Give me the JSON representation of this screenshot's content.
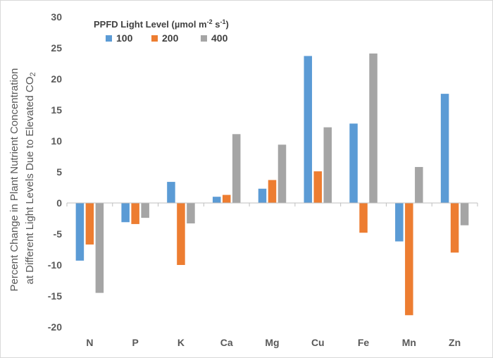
{
  "chart_data": {
    "type": "bar",
    "categories": [
      "N",
      "P",
      "K",
      "Ca",
      "Mg",
      "Cu",
      "Fe",
      "Mn",
      "Zn"
    ],
    "series": [
      {
        "name": "100",
        "color": "#5b9bd5",
        "values": [
          -9.3,
          -3.1,
          3.4,
          1.0,
          2.3,
          23.7,
          12.8,
          -6.2,
          17.6
        ]
      },
      {
        "name": "200",
        "color": "#ed7d31",
        "values": [
          -6.7,
          -3.4,
          -10.0,
          1.3,
          3.7,
          5.1,
          -4.8,
          -18.1,
          -8.0
        ]
      },
      {
        "name": "400",
        "color": "#a5a5a5",
        "values": [
          -14.5,
          -2.4,
          -3.3,
          11.1,
          9.4,
          12.2,
          24.1,
          5.8,
          -3.6
        ]
      }
    ],
    "ylim": [
      -20,
      30
    ],
    "yticks": [
      30,
      25,
      20,
      15,
      10,
      5,
      0,
      -5,
      -10,
      -15,
      -20
    ],
    "ylabel_line1": "Percent Change in Plant Nutrient Concentration",
    "ylabel_line2_prefix": "at Different Light Levels Due to Elevated CO",
    "ylabel_line2_sub": "2",
    "legend": {
      "title_prefix": "PPFD Light Level (µmol m",
      "title_sup1": "-2",
      "title_mid": " s",
      "title_sup2": "-1",
      "title_suffix": ")",
      "placement": "top-left"
    },
    "grid": false
  }
}
